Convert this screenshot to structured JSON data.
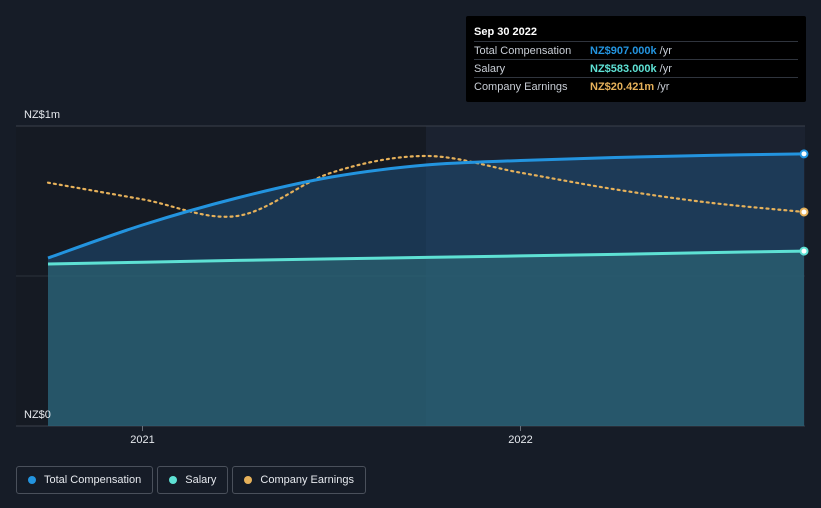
{
  "tooltip": {
    "date": "Sep 30 2022",
    "rows": [
      {
        "name": "Total Compensation",
        "value": "NZ$907.000k",
        "unit": "/yr",
        "color": "#2394df"
      },
      {
        "name": "Salary",
        "value": "NZ$583.000k",
        "unit": "/yr",
        "color": "#5ee1d4"
      },
      {
        "name": "Company Earnings",
        "value": "NZ$20.421m",
        "unit": "/yr",
        "color": "#e6b15a"
      }
    ]
  },
  "legend": [
    {
      "label": "Total Compensation",
      "color": "#2394df"
    },
    {
      "label": "Salary",
      "color": "#5ee1d4"
    },
    {
      "label": "Company Earnings",
      "color": "#e6b15a"
    }
  ],
  "chart_data": {
    "type": "line",
    "title": "",
    "xlabel": "",
    "ylabel": "",
    "ylim": [
      0,
      1000000
    ],
    "y_ticks": [
      {
        "value": 1000000,
        "label": "NZ$1m"
      },
      {
        "value": 0,
        "label": "NZ$0"
      }
    ],
    "x_ticks": [
      {
        "value": 2021.0,
        "label": "2021"
      },
      {
        "value": 2022.0,
        "label": "2022"
      }
    ],
    "xlim": [
      2020.72,
      2022.75
    ],
    "highlight_start": 2021.75,
    "series": [
      {
        "name": "Total Compensation",
        "color": "#2394df",
        "style": "solid",
        "area": true,
        "x": [
          2020.75,
          2021.0,
          2021.25,
          2021.5,
          2021.75,
          2022.0,
          2022.25,
          2022.5,
          2022.75
        ],
        "values": [
          560000,
          670000,
          760000,
          830000,
          870000,
          885000,
          895000,
          902000,
          907000
        ]
      },
      {
        "name": "Salary",
        "color": "#5ee1d4",
        "style": "solid",
        "area": true,
        "x": [
          2020.75,
          2021.0,
          2021.25,
          2021.5,
          2021.75,
          2022.0,
          2022.25,
          2022.5,
          2022.75
        ],
        "values": [
          540000,
          546000,
          552000,
          557000,
          562000,
          567000,
          572000,
          578000,
          583000
        ]
      },
      {
        "name": "Company Earnings",
        "color": "#e6b15a",
        "style": "dotted",
        "area": false,
        "scale_note": "plotted on a separate scale",
        "x": [
          2020.75,
          2021.0,
          2021.25,
          2021.5,
          2021.75,
          2022.0,
          2022.25,
          2022.5,
          2022.75
        ],
        "values": [
          21300000,
          20800000,
          20300000,
          21600000,
          22100000,
          21600000,
          21100000,
          20700000,
          20421000
        ],
        "scale_range": [
          14000000,
          23000000
        ]
      }
    ]
  }
}
